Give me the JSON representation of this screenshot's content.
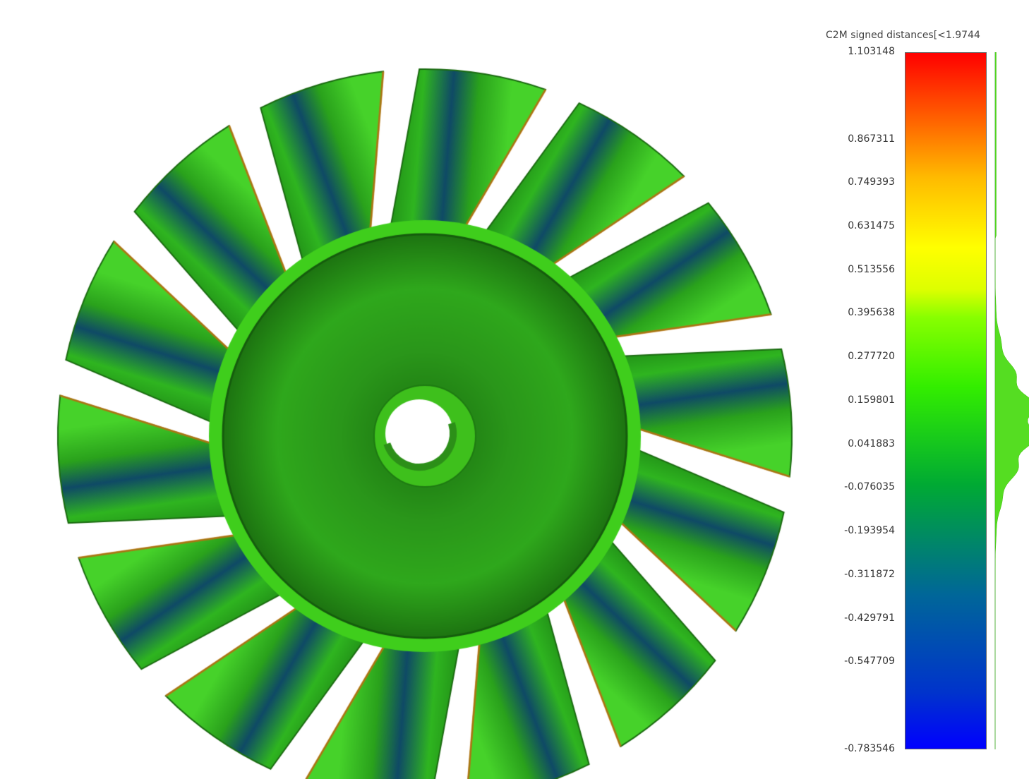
{
  "scalar_bar": {
    "title": "C2M signed distances[<1.9744",
    "max_value": 1.103148,
    "min_value": -0.783546,
    "ticks": [
      "1.103148",
      "0.867311",
      "0.749393",
      "0.631475",
      "0.513556",
      "0.395638",
      "0.277720",
      "0.159801",
      "0.041883",
      "-0.076035",
      "-0.193954",
      "-0.311872",
      "-0.429791",
      "-0.547709",
      "-0.783546"
    ],
    "colors": [
      "#0000ff",
      "#00cc33",
      "#33ff00",
      "#ffff00",
      "#ff6600",
      "#ff0000"
    ]
  },
  "model": {
    "name": "impeller",
    "blade_count": 14,
    "surface_color": "#2fa81c",
    "deviation_color": "#0f4a66"
  }
}
